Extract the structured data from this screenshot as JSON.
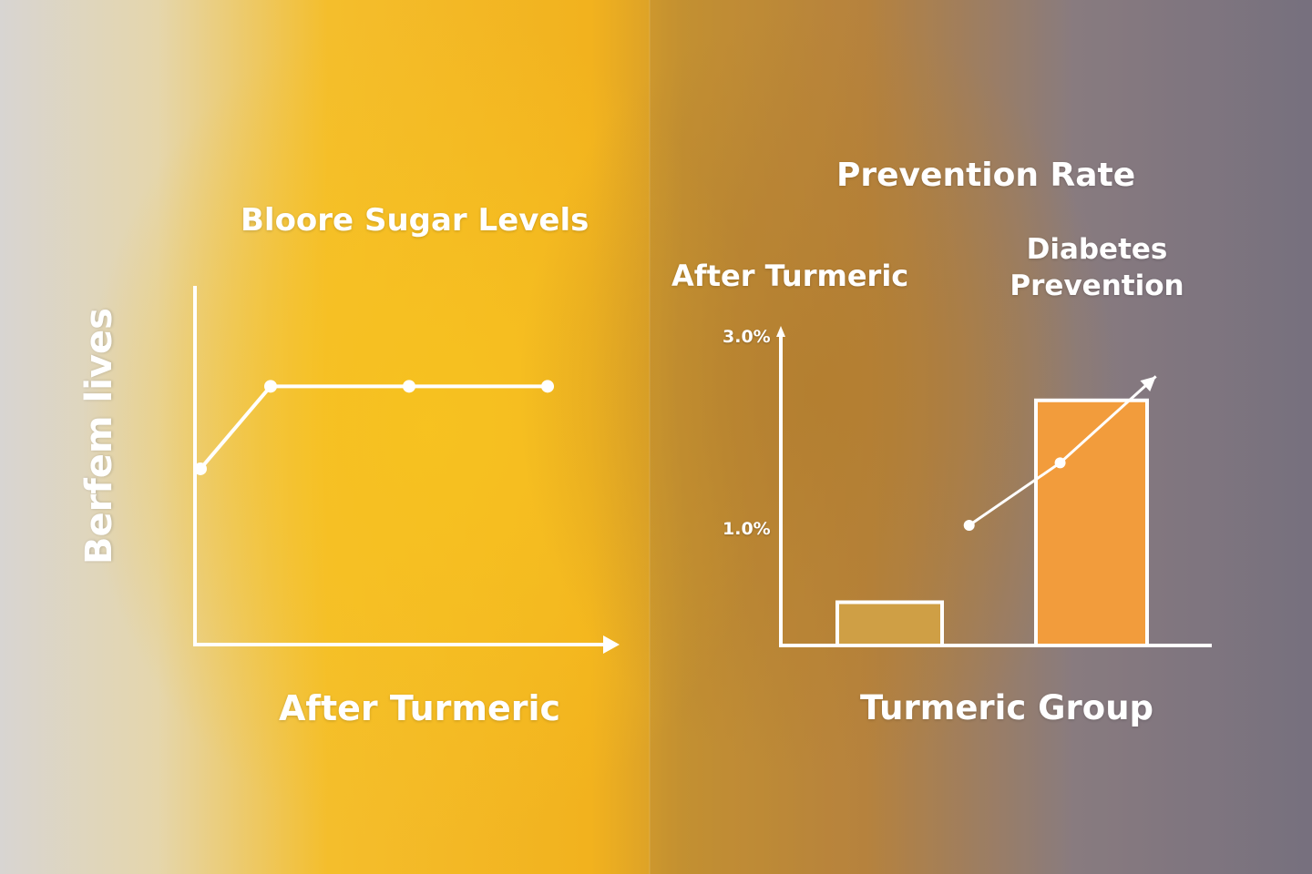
{
  "colors": {
    "background_left": "#d9d6d2",
    "background_mid": "#f2b21e",
    "background_right": "#807885",
    "axis": "#ffffff",
    "bar_before": "#cf9f45",
    "bar_after": "#f29c3c"
  },
  "chart_data": [
    {
      "type": "line",
      "title": "Bloore Sugar Levels",
      "xlabel": "After Turmeric",
      "ylabel": "Berfem lives",
      "x": [
        0,
        1,
        2,
        3
      ],
      "values": [
        0.49,
        0.72,
        0.72,
        0.72
      ],
      "ylim": [
        0,
        1
      ],
      "grid": false,
      "legend": "none"
    },
    {
      "type": "bar",
      "title": "Prevention Rate",
      "subtitle": "After Turmeric",
      "xlabel": "Turmeric Group",
      "annotation": "Diabetes Prevention",
      "yticks": [
        {
          "value": 1.0,
          "label": "1.0%"
        },
        {
          "value": 3.0,
          "label": "3.0%"
        }
      ],
      "ylim": [
        -0.2,
        3.2
      ],
      "bars": [
        0.25,
        2.35
      ],
      "trend": {
        "x": [
          1.48,
          2.05,
          2.65
        ],
        "values": [
          1.05,
          1.7,
          2.6
        ]
      },
      "grid": false,
      "legend": "none"
    }
  ]
}
